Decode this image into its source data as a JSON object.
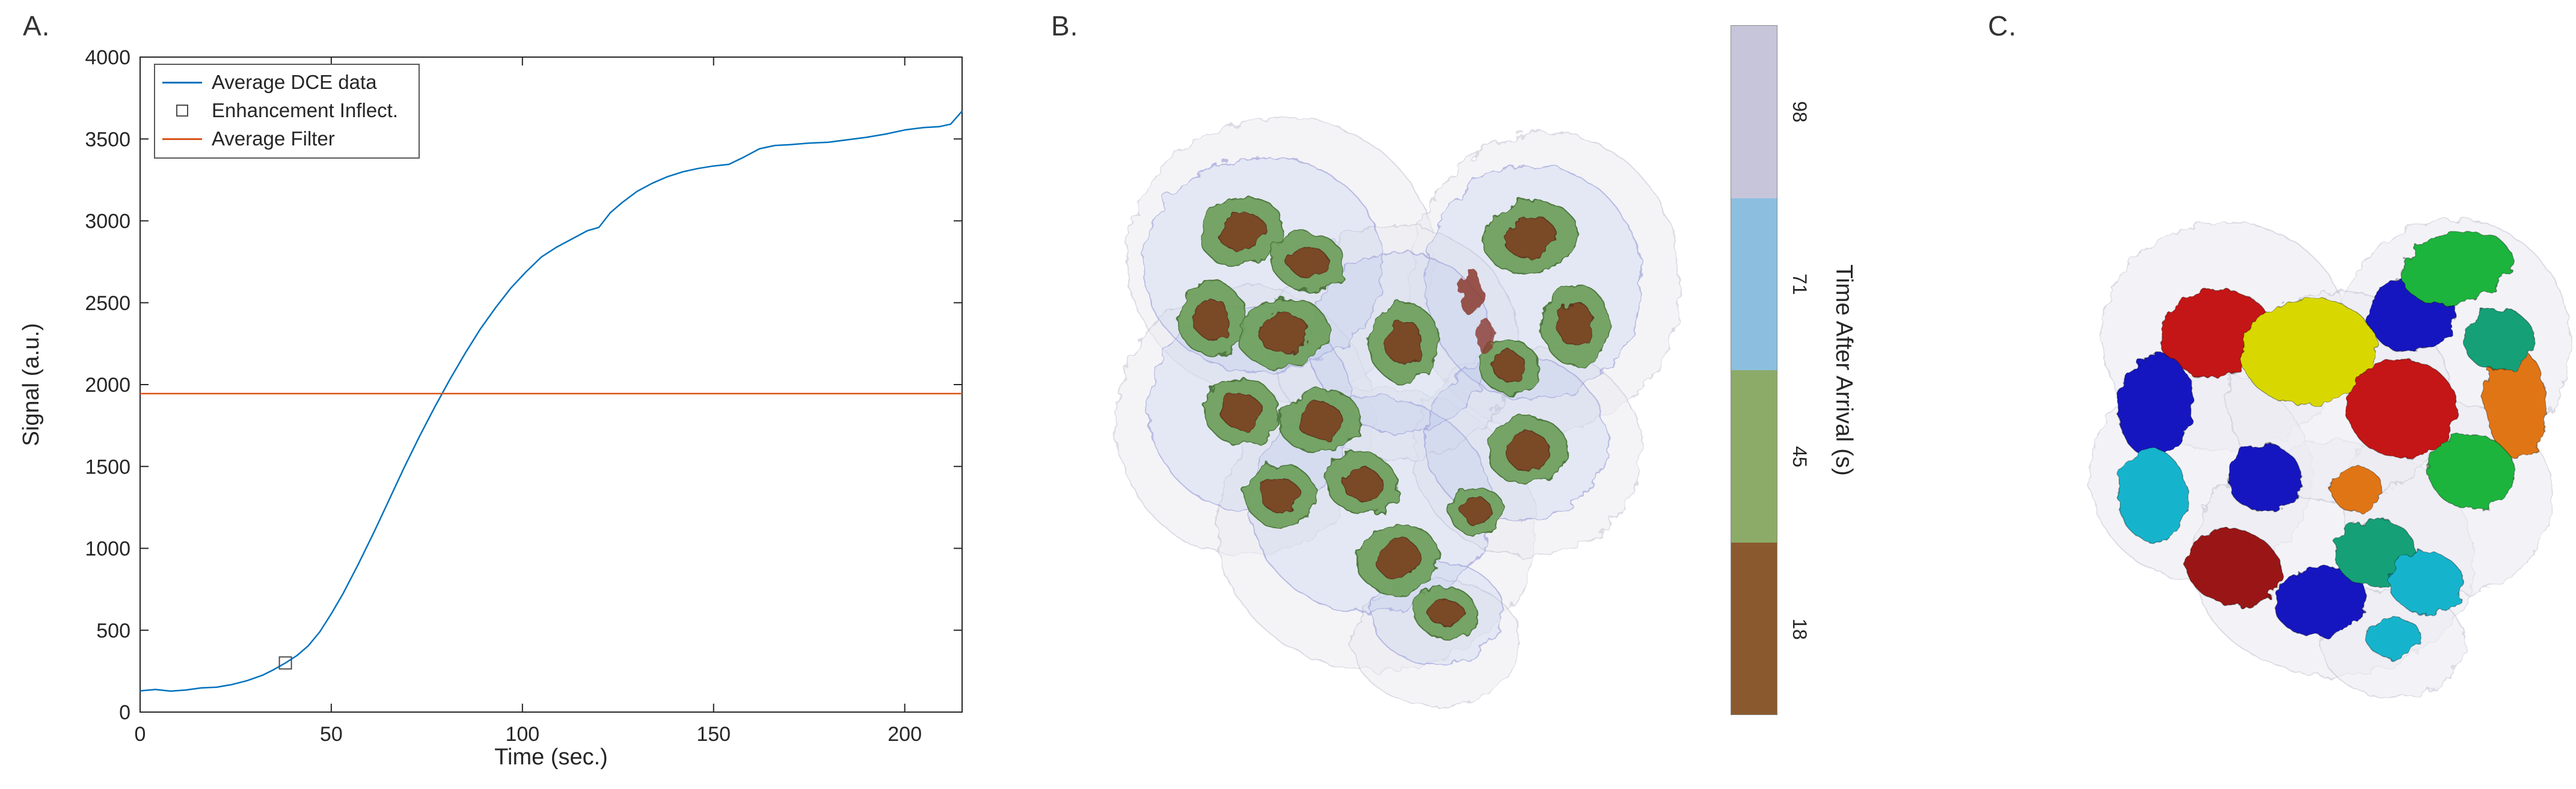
{
  "panels": {
    "a": {
      "label": "A."
    },
    "b": {
      "label": "B."
    },
    "c": {
      "label": "C."
    }
  },
  "chart_data": {
    "type": "line",
    "title": "",
    "xlabel": "Time (sec.)",
    "ylabel": "Signal (a.u.)",
    "xlim": [
      0,
      215
    ],
    "ylim": [
      0,
      4000
    ],
    "xticks": [
      0,
      50,
      100,
      150,
      200
    ],
    "yticks": [
      0,
      500,
      1000,
      1500,
      2000,
      2500,
      3000,
      3500,
      4000
    ],
    "grid": false,
    "legend_position": "top-left",
    "axis_color": "#262626",
    "series": [
      {
        "name": "Average DCE data",
        "type": "line",
        "color": "#0072BD",
        "x": [
          0,
          4,
          8,
          12,
          16,
          20,
          24,
          28,
          32,
          35,
          38,
          41,
          44,
          47,
          50,
          53,
          57,
          61,
          65,
          69,
          73,
          77,
          81,
          85,
          89,
          93,
          97,
          101,
          105,
          109,
          113,
          117,
          120,
          123,
          126,
          130,
          134,
          138,
          142,
          146,
          150,
          154,
          158,
          162,
          166,
          170,
          175,
          180,
          185,
          190,
          195,
          200,
          205,
          209,
          212,
          215
        ],
        "y": [
          130,
          138,
          128,
          135,
          148,
          152,
          168,
          192,
          225,
          260,
          300,
          345,
          405,
          490,
          600,
          720,
          900,
          1090,
          1290,
          1490,
          1680,
          1860,
          2030,
          2190,
          2340,
          2470,
          2590,
          2690,
          2780,
          2840,
          2890,
          2940,
          2960,
          3050,
          3110,
          3180,
          3230,
          3270,
          3300,
          3320,
          3335,
          3345,
          3390,
          3440,
          3460,
          3465,
          3475,
          3480,
          3495,
          3510,
          3530,
          3555,
          3570,
          3575,
          3590,
          3670
        ]
      },
      {
        "name": "Enhancement Inflect.",
        "type": "marker",
        "marker": "open-square",
        "color": "#4d4d4d",
        "x": [
          38
        ],
        "y": [
          300
        ]
      },
      {
        "name": "Average Filter",
        "type": "hline",
        "color": "#D95319",
        "value": 1945
      }
    ]
  },
  "colorbar": {
    "label": "Time After Arrival (s)",
    "segments": [
      {
        "tick": "98",
        "color": "#c7c5da"
      },
      {
        "tick": "71",
        "color": "#8cbedf"
      },
      {
        "tick": "45",
        "color": "#8cab69"
      },
      {
        "tick": "18",
        "color": "#8a5a2e"
      }
    ]
  }
}
